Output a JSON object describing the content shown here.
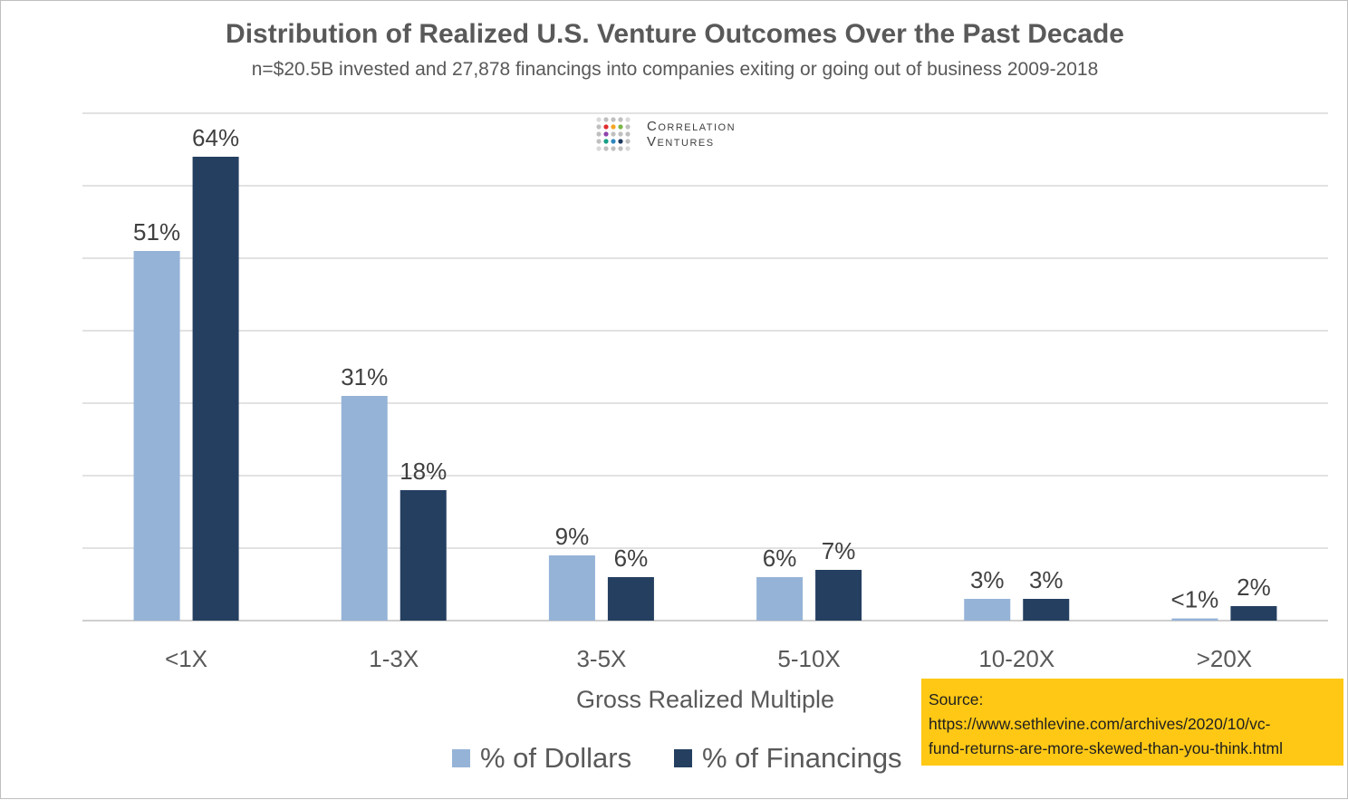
{
  "title": "Distribution of Realized U.S. Venture Outcomes Over the Past Decade",
  "subtitle": "n=$20.5B invested and 27,878 financings into companies exiting or going out of business 2009-2018",
  "logo": {
    "line1": "Correlation",
    "line2": "Ventures",
    "dot_colors": [
      "#d9d9d9",
      "#bfbfbf",
      "#e02e2e",
      "#f5a623",
      "#7ab648",
      "#2e86c1",
      "#8e44ad",
      "#16a085",
      "#1f3a5f"
    ]
  },
  "source": {
    "label": "Source:",
    "line1": "https://www.sethlevine.com/archives/2020/10/vc-",
    "line2": "fund-returns-are-more-skewed-than-you-think.html"
  },
  "chart_data": {
    "type": "bar",
    "categories": [
      "<1X",
      "1-3X",
      "3-5X",
      "5-10X",
      "10-20X",
      ">20X"
    ],
    "series": [
      {
        "name": "% of Dollars",
        "color": "#95b3d7",
        "values": [
          51,
          31,
          9,
          6,
          3,
          0.3
        ],
        "labels": [
          "51%",
          "31%",
          "9%",
          "6%",
          "3%",
          "<1%"
        ]
      },
      {
        "name": "% of Financings",
        "color": "#243f60",
        "values": [
          64,
          18,
          6,
          7,
          3,
          2
        ],
        "labels": [
          "64%",
          "18%",
          "6%",
          "7%",
          "3%",
          "2%"
        ]
      }
    ],
    "xlabel": "Gross Realized Multiple",
    "ylabel": "",
    "ylim": [
      0,
      70
    ],
    "grid": true,
    "legend": "bottom-center"
  }
}
